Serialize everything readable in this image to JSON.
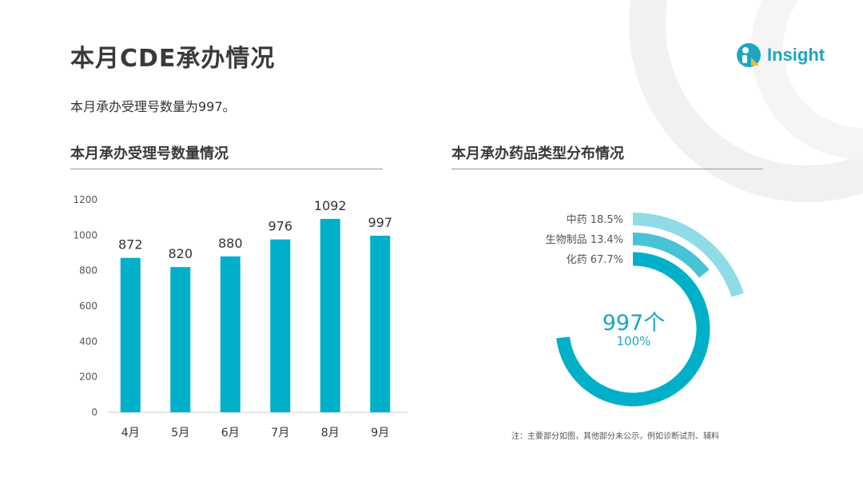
{
  "page": {
    "title": "本月CDE承办情况",
    "subtitle": "本月承办受理号数量为997。"
  },
  "logo": {
    "text": "Insight",
    "icon": "insight-logo-icon"
  },
  "colors": {
    "primary": "#00b0c8",
    "mid": "#47c3d6",
    "light": "#8fdbe6"
  },
  "bar_section": {
    "title": "本月承办受理号数量情况"
  },
  "pie_section": {
    "title": "本月承办药品类型分布情况",
    "center_value": "997个",
    "center_percent": "100%",
    "note": "注：主要部分如图，其他部分未公示，例如诊断试剂、辅料"
  },
  "chart_data": [
    {
      "type": "bar",
      "categories": [
        "4月",
        "5月",
        "6月",
        "7月",
        "8月",
        "9月"
      ],
      "values": [
        872,
        820,
        880,
        976,
        1092,
        997
      ],
      "ylim": [
        0,
        1200
      ],
      "yticks": [
        0,
        200,
        400,
        600,
        800,
        1000,
        1200
      ],
      "title": "本月承办受理号数量情况",
      "data_labels": true,
      "grid": false
    },
    {
      "type": "pie",
      "style": "concentric-arcs",
      "categories": [
        "中药",
        "生物制品",
        "化药"
      ],
      "values": [
        18.5,
        13.4,
        67.7
      ],
      "labels": [
        "中药  18.5%",
        "生物制品  13.4%",
        "化药 67.7%"
      ],
      "title": "本月承办药品类型分布情况"
    }
  ]
}
